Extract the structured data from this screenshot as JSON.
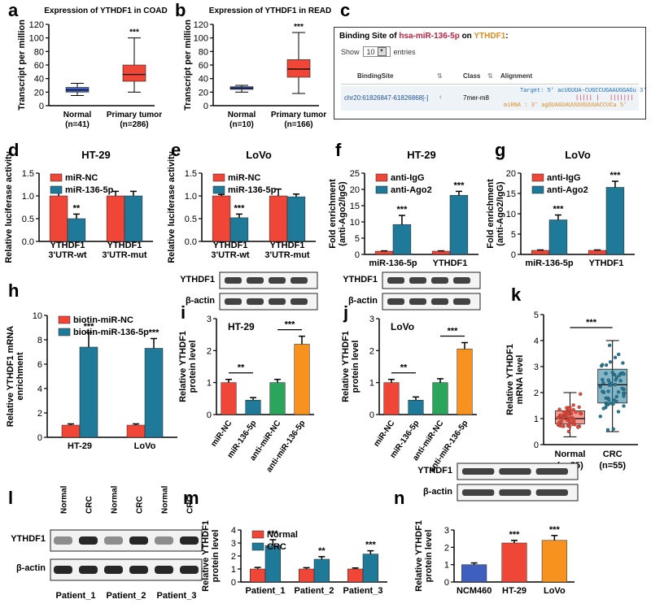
{
  "panel_letters": {
    "a": "a",
    "b": "b",
    "c": "c",
    "d": "d",
    "e": "e",
    "f": "f",
    "g": "g",
    "h": "h",
    "i": "i",
    "j": "j",
    "k": "k",
    "l": "l",
    "m": "m",
    "n": "n"
  },
  "colors": {
    "blue": "#3f5fbf",
    "red": "#ef4637",
    "teal": "#1f7a99",
    "green": "#2ca55c",
    "orange": "#f7921e",
    "gray": "#888888"
  },
  "stars3": "***",
  "stars2": "**",
  "chart_data": [
    {
      "id": "a",
      "type": "box",
      "title": "Expression of YTHDF1 in COAD",
      "ylabel": "Transcript per million",
      "ylim": [
        0,
        120
      ],
      "yticks": [
        0,
        20,
        40,
        60,
        80,
        100,
        120
      ],
      "groups": [
        {
          "name": "Normal",
          "n": "(n=41)",
          "min": 15,
          "q1": 20,
          "median": 23,
          "q3": 27,
          "max": 33,
          "color": "blue"
        },
        {
          "name": "Primary tumor",
          "n": "(n=286)",
          "min": 20,
          "q1": 36,
          "median": 46,
          "q3": 60,
          "max": 100,
          "color": "red"
        }
      ],
      "annot": "***"
    },
    {
      "id": "b",
      "type": "box",
      "title": "Expression of YTHDF1 in READ",
      "ylabel": "Transcript per million",
      "ylim": [
        0,
        120
      ],
      "yticks": [
        0,
        20,
        40,
        60,
        80,
        100,
        120
      ],
      "groups": [
        {
          "name": "Normal",
          "n": "(n=10)",
          "min": 20,
          "q1": 24,
          "median": 26,
          "q3": 28,
          "max": 30,
          "color": "blue"
        },
        {
          "name": "Primary tumor",
          "n": "(n=166)",
          "min": 18,
          "q1": 42,
          "median": 54,
          "q3": 68,
          "max": 108,
          "color": "red"
        }
      ],
      "annot": "***"
    },
    {
      "id": "d",
      "type": "bar",
      "title": "HT-29",
      "ylabel": "Relative luciferase activity",
      "ylim": [
        0,
        1.5
      ],
      "yticks": [
        "0.0",
        "0.5",
        "1.0",
        "1.5"
      ],
      "categories": [
        "YTHDF1\n3'UTR-wt",
        "YTHDF1\n3'UTR-mut"
      ],
      "series": [
        {
          "name": "miR-NC",
          "color": "red",
          "values": [
            1.0,
            1.0
          ],
          "err": [
            0.12,
            0.1
          ]
        },
        {
          "name": "miR-136-5p",
          "color": "teal",
          "values": [
            0.5,
            1.0
          ],
          "err": [
            0.1,
            0.1
          ]
        }
      ],
      "annots": [
        {
          "cat": 0,
          "ser": 1,
          "text": "**"
        }
      ]
    },
    {
      "id": "e",
      "type": "bar",
      "title": "LoVo",
      "ylabel": "Relative luciferase activity",
      "ylim": [
        0,
        1.5
      ],
      "yticks": [
        "0.0",
        "0.5",
        "1.0",
        "1.5"
      ],
      "categories": [
        "YTHDF1\n3'UTR-wt",
        "YTHDF1\n3'UTR-mut"
      ],
      "series": [
        {
          "name": "miR-NC",
          "color": "red",
          "values": [
            1.0,
            1.0
          ],
          "err": [
            0.03,
            0.15
          ]
        },
        {
          "name": "miR-136-5p",
          "color": "teal",
          "values": [
            0.52,
            0.98
          ],
          "err": [
            0.08,
            0.06
          ]
        }
      ],
      "annots": [
        {
          "cat": 0,
          "ser": 1,
          "text": "***"
        }
      ]
    },
    {
      "id": "f",
      "type": "bar",
      "title": "HT-29",
      "ylabel": "Fold enrichment\n(anti-Ago2/IgG)",
      "ylim": [
        0,
        25
      ],
      "yticks": [
        "0",
        "5",
        "10",
        "15",
        "20",
        "25"
      ],
      "categories": [
        "miR-136-5p",
        "YTHDF1"
      ],
      "series": [
        {
          "name": "anti-IgG",
          "color": "red",
          "values": [
            1.0,
            1.0
          ],
          "err": [
            0.1,
            0.1
          ]
        },
        {
          "name": "anti-Ago2",
          "color": "teal",
          "values": [
            9.2,
            18.2
          ],
          "err": [
            2.8,
            1.2
          ]
        }
      ],
      "annots": [
        {
          "cat": 0,
          "ser": 1,
          "text": "***"
        },
        {
          "cat": 1,
          "ser": 1,
          "text": "***"
        }
      ]
    },
    {
      "id": "g",
      "type": "bar",
      "title": "LoVo",
      "ylabel": "Fold enrichment\n(anti-Ago2/IgG)",
      "ylim": [
        0,
        20
      ],
      "yticks": [
        "0",
        "5",
        "10",
        "15",
        "20"
      ],
      "categories": [
        "miR-136-5p",
        "YTHDF1"
      ],
      "series": [
        {
          "name": "anti-IgG",
          "color": "red",
          "values": [
            1.0,
            1.0
          ],
          "err": [
            0.1,
            0.1
          ]
        },
        {
          "name": "anti-Ago2",
          "color": "teal",
          "values": [
            8.5,
            16.5
          ],
          "err": [
            1.2,
            1.5
          ]
        }
      ],
      "annots": [
        {
          "cat": 0,
          "ser": 1,
          "text": "***"
        },
        {
          "cat": 1,
          "ser": 1,
          "text": "***"
        }
      ]
    },
    {
      "id": "h",
      "type": "bar",
      "title": "",
      "ylabel": "Relative YTHDF1 mRNA\nenrichment",
      "ylim": [
        0,
        10
      ],
      "yticks": [
        "0",
        "2",
        "4",
        "6",
        "8",
        "10"
      ],
      "categories": [
        "HT-29",
        "LoVo"
      ],
      "series": [
        {
          "name": "biotin-miR-NC",
          "color": "red",
          "values": [
            1.0,
            1.0
          ],
          "err": [
            0.1,
            0.1
          ]
        },
        {
          "name": "biotin-miR-136-5p",
          "color": "teal",
          "values": [
            7.4,
            7.3
          ],
          "err": [
            1.2,
            0.8
          ]
        }
      ],
      "annots": [
        {
          "cat": 0,
          "ser": 1,
          "text": "***"
        },
        {
          "cat": 1,
          "ser": 1,
          "text": "***"
        }
      ]
    },
    {
      "id": "i",
      "type": "bar4",
      "title": "HT-29",
      "ylabel": "Relative YTHDF1\nprotein level",
      "ylim": [
        0,
        3
      ],
      "yticks": [
        "0",
        "1",
        "2",
        "3"
      ],
      "categories": [
        "miR-NC",
        "miR-136-5p",
        "anti-miR-NC",
        "anti-miR-136-5p"
      ],
      "values": [
        1.0,
        0.45,
        1.0,
        2.2
      ],
      "err": [
        0.1,
        0.08,
        0.1,
        0.25
      ],
      "colors": [
        "red",
        "teal",
        "green",
        "orange"
      ],
      "brackets": [
        {
          "from": 0,
          "to": 1,
          "text": "**"
        },
        {
          "from": 2,
          "to": 3,
          "text": "***"
        }
      ],
      "blot": {
        "labels": [
          "YTHDF1",
          "β-actin"
        ]
      }
    },
    {
      "id": "j",
      "type": "bar4",
      "title": "LoVo",
      "ylabel": "Relative YTHDF1\nprotein level",
      "ylim": [
        0,
        3
      ],
      "yticks": [
        "0",
        "1",
        "2",
        "3"
      ],
      "categories": [
        "miR-NC",
        "miR-136-5p",
        "anti-miR-NC",
        "anti-miR-136-5p"
      ],
      "values": [
        1.0,
        0.45,
        1.0,
        2.05
      ],
      "err": [
        0.1,
        0.1,
        0.12,
        0.2
      ],
      "colors": [
        "red",
        "teal",
        "green",
        "orange"
      ],
      "brackets": [
        {
          "from": 0,
          "to": 1,
          "text": "**"
        },
        {
          "from": 2,
          "to": 3,
          "text": "***"
        }
      ],
      "blot": {
        "labels": [
          "YTHDF1",
          "β-actin"
        ]
      }
    },
    {
      "id": "k",
      "type": "boxscatter",
      "ylabel": "Relative YTHDF1\nmRNA level",
      "ylim": [
        0,
        5
      ],
      "yticks": [
        "0",
        "1",
        "2",
        "3",
        "4",
        "5"
      ],
      "groups": [
        {
          "name": "Normal",
          "n": "(n=55)",
          "min": 0.3,
          "q1": 0.8,
          "median": 1.0,
          "q3": 1.3,
          "max": 2.0,
          "color": "red"
        },
        {
          "name": "CRC",
          "n": "(n=55)",
          "min": 0.5,
          "q1": 1.6,
          "median": 2.3,
          "q3": 2.9,
          "max": 4.0,
          "color": "teal"
        }
      ],
      "annot": "***"
    },
    {
      "id": "m",
      "type": "bar",
      "title": "",
      "ylabel": "Relative YTHDF1\nprotein level",
      "ylim": [
        0,
        4
      ],
      "yticks": [
        "0",
        "1",
        "2",
        "3",
        "4"
      ],
      "categories": [
        "Patient_1",
        "Patient_2",
        "Patient_3"
      ],
      "series": [
        {
          "name": "Normal",
          "color": "red",
          "values": [
            1.0,
            1.0,
            1.0
          ],
          "err": [
            0.12,
            0.1,
            0.08
          ]
        },
        {
          "name": "CRC",
          "color": "teal",
          "values": [
            2.8,
            1.75,
            2.15
          ],
          "err": [
            0.45,
            0.2,
            0.25
          ]
        }
      ],
      "annots": [
        {
          "cat": 0,
          "ser": 1,
          "text": "***"
        },
        {
          "cat": 1,
          "ser": 1,
          "text": "**"
        },
        {
          "cat": 2,
          "ser": 1,
          "text": "***"
        }
      ]
    },
    {
      "id": "n",
      "type": "bar3",
      "title": "",
      "ylabel": "Relative YTHDF1\nprotein level",
      "ylim": [
        0,
        3
      ],
      "yticks": [
        "0",
        "1",
        "2",
        "3"
      ],
      "categories": [
        "NCM460",
        "HT-29",
        "LoVo"
      ],
      "values": [
        1.0,
        2.25,
        2.4
      ],
      "err": [
        0.1,
        0.15,
        0.28
      ],
      "colors": [
        "blue",
        "red",
        "orange"
      ],
      "annots": [
        {
          "idx": 1,
          "text": "***"
        },
        {
          "idx": 2,
          "text": "***"
        }
      ],
      "blot": {
        "labels": [
          "YTHDF1",
          "β-actin"
        ]
      }
    }
  ],
  "table_c": {
    "title_prefix": "Binding Site of ",
    "mirna": "hsa-miR-136-5p",
    "title_mid": " on ",
    "gene": "YTHDF1",
    "title_suffix": ":",
    "show_label": "Show",
    "show_value": "10",
    "entries_label": "entries",
    "col_site": "BindingSite",
    "col_class": "Class",
    "col_align": "Alignment",
    "site": "chr20:61826847-61826868[-]",
    "class": "7mer-m8",
    "target_line": "Target: 5' acUGUUA-CUGCCUGAAUGGAGu 3'",
    "pair_line": "||||| |   |||||||",
    "mirna_line": "miRNA : 3' agGUAGUAUUUUGUUUACCUCa 5'"
  },
  "blot_l": {
    "lanes": [
      "Normal",
      "CRC",
      "Normal",
      "CRC",
      "Normal",
      "CRC"
    ],
    "rows": [
      "YTHDF1",
      "β-actin"
    ],
    "patients": [
      "Patient_1",
      "Patient_2",
      "Patient_3"
    ]
  }
}
